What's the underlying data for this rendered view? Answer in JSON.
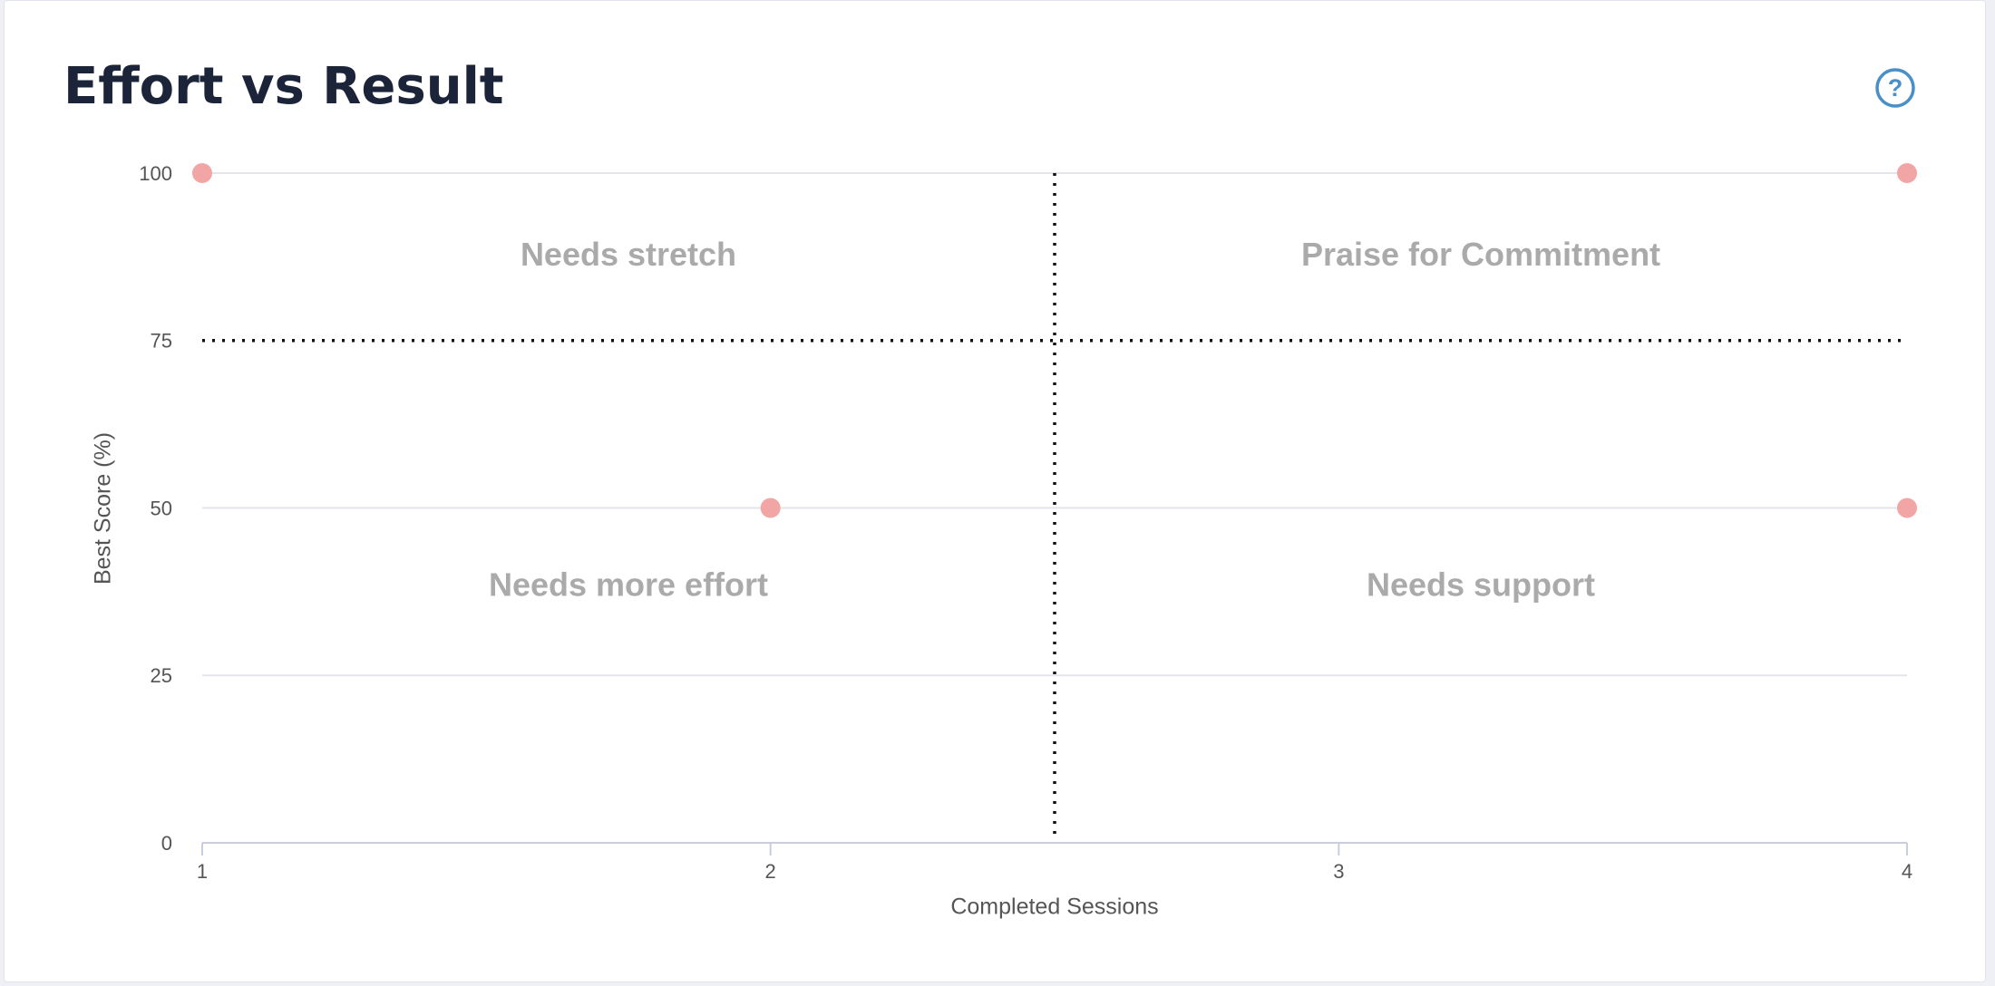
{
  "chart_data": {
    "type": "scatter",
    "title": "Effort vs Result",
    "help_icon": "?",
    "x_label": "Completed Sessions",
    "y_label": "Best Score (%)",
    "x": [
      1,
      4,
      2,
      4
    ],
    "values": [
      100,
      100,
      50,
      50
    ],
    "color": "#f2a5a5",
    "xlim": [
      1,
      4
    ],
    "ylim": [
      0,
      100
    ],
    "xticks": [
      1,
      2,
      3,
      4
    ],
    "yticks": [
      0,
      25,
      50,
      75,
      100
    ],
    "grid": true,
    "quadrant_lines": {
      "x": 2.5,
      "y": 75
    },
    "quadrant_labels": [
      "Needs stretch",
      "Praise for Commitment",
      "Needs more effort",
      "Needs support"
    ]
  }
}
